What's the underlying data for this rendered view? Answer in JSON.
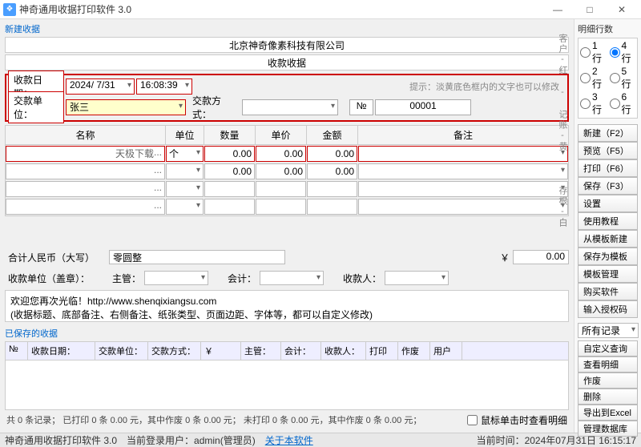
{
  "window": {
    "title": "神奇通用收据打印软件 3.0"
  },
  "section": {
    "new_receipt": "新建收据",
    "saved_receipts": "已保存的收据"
  },
  "header": {
    "company": "北京神奇像素科技有限公司",
    "receipt_title": "收款收据"
  },
  "form": {
    "date_label": "收款日期：",
    "date_value": "2024/ 7/31",
    "time_value": "16:08:39",
    "payer_label": "交款单位：",
    "payer_value": "张三",
    "pay_method_label": "交款方式：",
    "pay_method_value": "",
    "hint": "提示：淡黄底色框内的文字也可以修改",
    "no_label": "№",
    "no_value": "00001"
  },
  "table": {
    "headers": {
      "name": "名称",
      "unit": "单位",
      "qty": "数量",
      "price": "单价",
      "amount": "金额",
      "remark": "备注"
    },
    "widths": {
      "name": 200,
      "unit": 48,
      "qty": 64,
      "price": 64,
      "amount": 64,
      "remark": 220
    },
    "rows": [
      {
        "name": "天极下载",
        "unit": "个",
        "qty": "0.00",
        "price": "0.00",
        "amount": "0.00",
        "remark": ""
      },
      {
        "name": "",
        "unit": "",
        "qty": "0.00",
        "price": "0.00",
        "amount": "0.00",
        "remark": ""
      },
      {
        "name": "",
        "unit": "",
        "qty": "",
        "price": "",
        "amount": "",
        "remark": ""
      },
      {
        "name": "",
        "unit": "",
        "qty": "",
        "price": "",
        "amount": "",
        "remark": ""
      }
    ]
  },
  "totals": {
    "rmb_upper_label": "合计人民币（大写）",
    "rmb_upper_value": "零圆整",
    "currency_symbol": "￥",
    "total_value": "0.00",
    "unit_seal_label": "收款单位（盖章）：",
    "supervisor_label": "主管：",
    "accountant_label": "会计：",
    "payee_label": "收款人："
  },
  "welcome": {
    "line1": "欢迎您再次光临！http://www.shenqixiangsu.com",
    "line2": "(收据标题、底部备注、右侧备注、纸张类型、页面边距、字体等，都可以自定义修改)"
  },
  "saved": {
    "headers": [
      "№",
      "收款日期：",
      "交款单位：",
      "交款方式：",
      "￥",
      "主管：",
      "会计：",
      "收款人：",
      "打印",
      "作废",
      "用户"
    ],
    "widths": [
      28,
      84,
      66,
      66,
      50,
      50,
      50,
      56,
      40,
      40,
      40
    ]
  },
  "footer_stats": "共 0 条记录；  已打印 0 条 0.00 元，其中作废 0 条 0.00 元；  未打印 0 条 0.00 元，其中作废 0 条 0.00 元；",
  "checkbox": {
    "label": "鼠标单击时查看明细"
  },
  "sidebar": {
    "rows_label": "明细行数",
    "row_options": [
      "1 行",
      "4 行",
      "2 行",
      "5 行",
      "3 行",
      "6 行"
    ],
    "row_selected": "4 行",
    "buttons_top": [
      "新建（F2）",
      "预览（F5）",
      "打印（F6）",
      "保存（F3）",
      "设置",
      "使用教程",
      "从模板新建",
      "保存为模板",
      "模板管理",
      "购买软件",
      "输入授权码"
    ],
    "filter": "所有记录",
    "buttons_bottom": [
      "自定义查询",
      "查看明细",
      "作废",
      "删除",
      "导出到Excel",
      "管理数据库"
    ]
  },
  "side_strip": "客户-红 - 记账-黄 - 存根-白",
  "statusbar": {
    "app": "神奇通用收据打印软件 3.0",
    "user": "当前登录用户：admin(管理员)",
    "about": "关于本软件",
    "time": "当前时间：2024年07月31日 16:15:17"
  },
  "colors": {
    "red": "#cc0000",
    "link": "#0066cc",
    "hint": "#888888",
    "yellow": "#ffffcc"
  }
}
